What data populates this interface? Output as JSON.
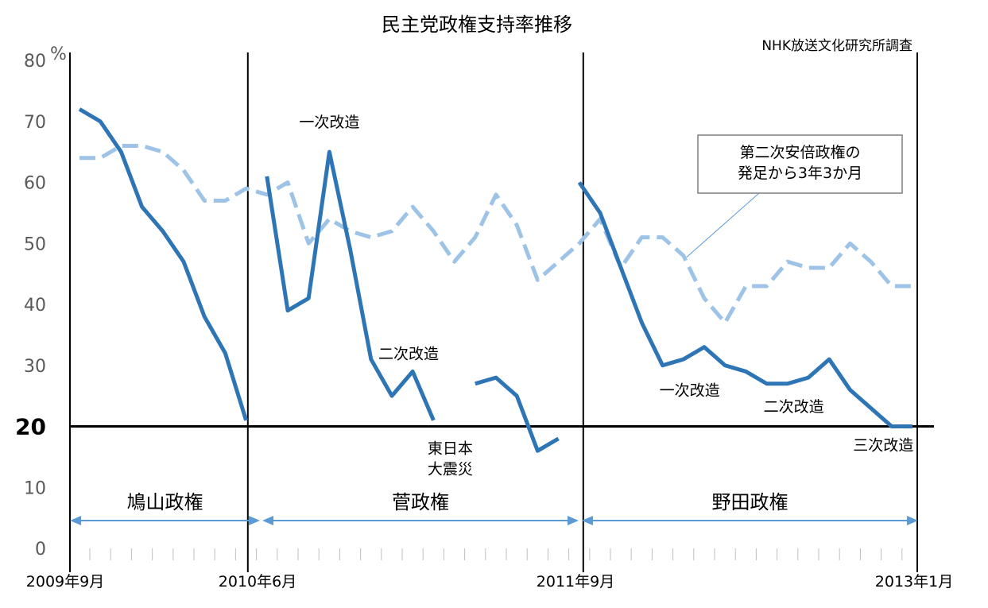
{
  "chart_data": {
    "type": "line",
    "title": "民主党政権支持率推移",
    "source_note": "NHK放送文化研究所調査",
    "ylabel_unit": "%",
    "ylim": [
      0,
      80
    ],
    "yticks": [
      "0",
      "10",
      "20",
      "30",
      "40",
      "50",
      "60",
      "70",
      "80"
    ],
    "highlight_y": 20,
    "grid": false,
    "x_tick_labels": [
      {
        "label": "2009年9月",
        "x": 0
      },
      {
        "label": "2010年6月",
        "x": 9
      },
      {
        "label": "2011年9月",
        "x": 24
      },
      {
        "label": "2013年1月",
        "x": 40
      }
    ],
    "xlim": [
      0,
      40
    ],
    "series": [
      {
        "style": "solid",
        "color": "#2e75b6",
        "segments": [
          {
            "x": [
              0,
              1,
              2,
              3,
              4,
              5,
              6,
              7,
              8
            ],
            "y": [
              72,
              70,
              65,
              56,
              52,
              47,
              38,
              32,
              21
            ]
          },
          {
            "x": [
              9,
              10,
              11,
              12,
              13,
              14,
              15,
              16,
              17
            ],
            "y": [
              61,
              39,
              41,
              65,
              49,
              31,
              25,
              29,
              21
            ]
          },
          {
            "x": [
              19,
              20,
              21,
              22,
              23
            ],
            "y": [
              27,
              28,
              25,
              16,
              18
            ]
          },
          {
            "x": [
              24,
              25,
              26,
              27,
              28,
              29,
              30,
              31,
              32,
              33,
              34,
              35,
              36,
              37,
              38,
              39,
              40
            ],
            "y": [
              60,
              55,
              46,
              37,
              30,
              31,
              33,
              30,
              29,
              27,
              27,
              28,
              31,
              26,
              23,
              20,
              20
            ]
          }
        ]
      },
      {
        "style": "dashed",
        "color": "#9dc3e6",
        "segments": [
          {
            "x": [
              0,
              1,
              2,
              3,
              4,
              5,
              6,
              7,
              8,
              9,
              10,
              11,
              12,
              13,
              14,
              15,
              16,
              17,
              18,
              19,
              20,
              21,
              22,
              23,
              24,
              25,
              26,
              27,
              28,
              29,
              30,
              31,
              32,
              33,
              34,
              35,
              36,
              37,
              38,
              39,
              40
            ],
            "y": [
              64,
              64,
              66,
              66,
              65,
              62,
              57,
              57,
              59,
              58,
              60,
              50,
              54,
              52,
              51,
              52,
              56,
              52,
              47,
              51,
              58,
              53,
              44,
              47,
              50,
              54,
              46,
              51,
              51,
              48,
              41,
              37,
              43,
              43,
              47,
              46,
              46,
              50,
              47,
              43,
              43
            ]
          }
        ]
      }
    ],
    "eras": [
      {
        "label": "鳩山政権",
        "x_start": 0,
        "x_end": 9
      },
      {
        "label": "菅政権",
        "x_start": 9,
        "x_end": 24
      },
      {
        "label": "野田政権",
        "x_start": 24,
        "x_end": 40
      }
    ],
    "annotations": [
      {
        "id": "kan-1",
        "lines": [
          "一次改造"
        ],
        "x": 12,
        "y": 70
      },
      {
        "id": "kan-2",
        "lines": [
          "二次改造"
        ],
        "x": 15.8,
        "y": 32
      },
      {
        "id": "quake",
        "lines": [
          "東日本",
          "大震災"
        ],
        "x": 17.8,
        "y": 16.5
      },
      {
        "id": "noda-1",
        "lines": [
          "一次改造"
        ],
        "x": 29.3,
        "y": 26
      },
      {
        "id": "noda-2",
        "lines": [
          "二次改造"
        ],
        "x": 34.3,
        "y": 23.3
      },
      {
        "id": "noda-3",
        "lines": [
          "三次改造"
        ],
        "x": 38.6,
        "y": 17
      }
    ],
    "callout": {
      "lines": [
        "第二次安倍政権の",
        "発足から3年3か月"
      ],
      "points_to": {
        "x": 29,
        "y": 48
      }
    }
  }
}
